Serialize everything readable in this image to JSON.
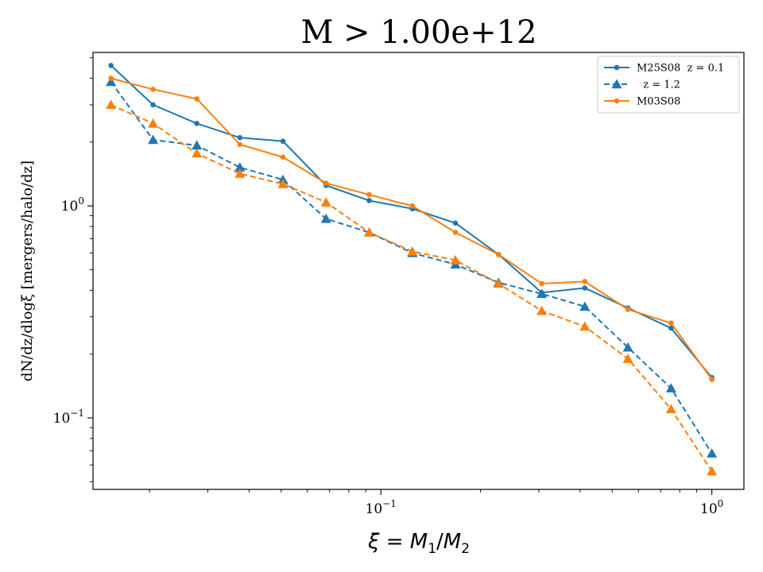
{
  "chart_data": {
    "type": "line",
    "title": "M > 1.00e+12",
    "xlabel": "ξ = M1/M2",
    "xlabel_parts": {
      "xi": "ξ",
      "eq": " = ",
      "m": "M",
      "sub1": "1",
      "slash": "/",
      "sub2": "2"
    },
    "ylabel": "dN/dz/dlogξ [mergers/halo/dz]",
    "xscale": "log",
    "yscale": "log",
    "xlim": [
      0.0135,
      1.25
    ],
    "ylim": [
      0.046,
      5.3
    ],
    "grid": false,
    "legend_position": "top-right",
    "x_tick_labels": [
      {
        "value": 0.1,
        "base": "10",
        "exp": "−1"
      },
      {
        "value": 1,
        "base": "10",
        "exp": "0"
      }
    ],
    "y_tick_labels": [
      {
        "value": 0.1,
        "base": "10",
        "exp": "−1"
      },
      {
        "value": 1,
        "base": "10",
        "exp": "0"
      }
    ],
    "series": [
      {
        "name": "M25S08  z = 0.1",
        "color": "#1f77b4",
        "linestyle": "solid",
        "marker": "circle",
        "x": [
          0.0153,
          0.0205,
          0.0278,
          0.0375,
          0.0506,
          0.0683,
          0.0922,
          0.1245,
          0.168,
          0.2268,
          0.3062,
          0.4133,
          0.5579,
          0.7531,
          1.0
        ],
        "y": [
          4.6,
          3.0,
          2.45,
          2.1,
          2.02,
          1.25,
          1.06,
          0.97,
          0.83,
          0.59,
          0.39,
          0.41,
          0.33,
          0.265,
          0.155
        ]
      },
      {
        "name": "  z = 1.2",
        "color": "#1f77b4",
        "linestyle": "dashed",
        "marker": "triangle",
        "x": [
          0.0153,
          0.0205,
          0.0278,
          0.0375,
          0.0506,
          0.0683,
          0.0922,
          0.1245,
          0.168,
          0.2268,
          0.3062,
          0.4133,
          0.5579,
          0.7531,
          1.0
        ],
        "y": [
          3.85,
          2.05,
          1.93,
          1.52,
          1.33,
          0.87,
          0.75,
          0.6,
          0.53,
          0.435,
          0.385,
          0.335,
          0.215,
          0.138,
          0.068
        ]
      },
      {
        "name": "M03S08",
        "color": "#ff7f0e",
        "linestyle": "solid",
        "marker": "circle",
        "x": [
          0.0153,
          0.0205,
          0.0278,
          0.0375,
          0.0506,
          0.0683,
          0.0922,
          0.1245,
          0.168,
          0.2268,
          0.3062,
          0.4133,
          0.5579,
          0.7531,
          1.0
        ],
        "y": [
          4.0,
          3.55,
          3.2,
          1.95,
          1.7,
          1.28,
          1.13,
          1.0,
          0.75,
          0.59,
          0.43,
          0.44,
          0.325,
          0.28,
          0.152
        ]
      },
      {
        "name": "",
        "color": "#ff7f0e",
        "linestyle": "dashed",
        "marker": "triangle",
        "x": [
          0.0153,
          0.0205,
          0.0278,
          0.0375,
          0.0506,
          0.0683,
          0.0922,
          0.1245,
          0.168,
          0.2268,
          0.3062,
          0.4133,
          0.5579,
          0.7531,
          1.0
        ],
        "y": [
          3.0,
          2.45,
          1.77,
          1.42,
          1.27,
          1.04,
          0.75,
          0.61,
          0.555,
          0.43,
          0.32,
          0.27,
          0.19,
          0.11,
          0.056
        ]
      }
    ],
    "legend_entries": [
      0,
      1,
      2
    ]
  }
}
